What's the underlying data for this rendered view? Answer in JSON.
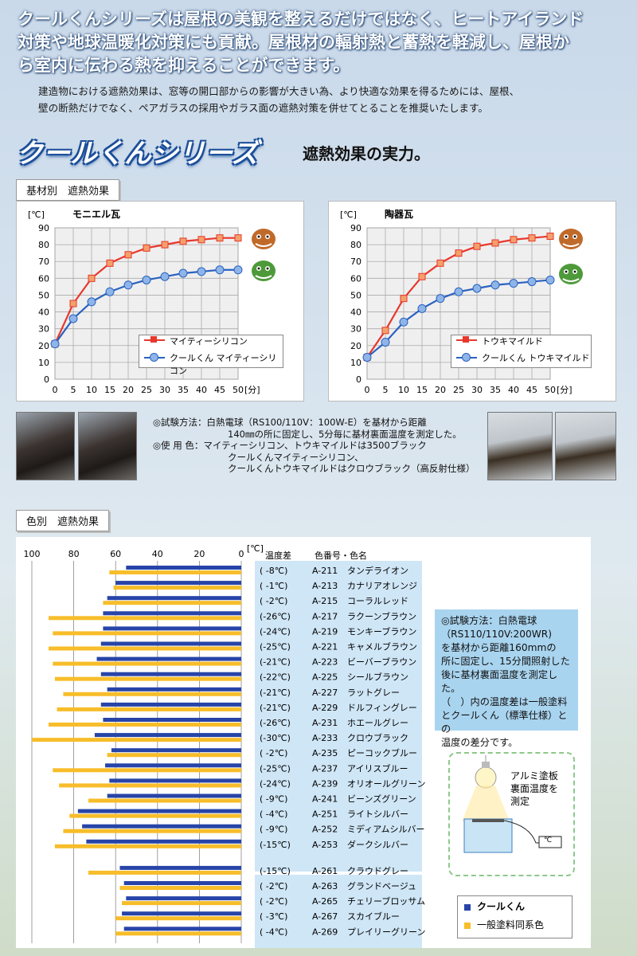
{
  "intro": {
    "line1": "クールくんシリーズは屋根の美観を整えるだけではなく、ヒートアイランド",
    "line2": "対策や地球温暖化対策にも貢献。屋根材の輻射熱と蓄熱を軽減し、屋根か",
    "line3": "ら室内に伝わる熱を抑えることができます。"
  },
  "sub": {
    "line1": "建造物における遮熱効果は、窓等の開口部からの影響が大きい為、より快適な効果を得るためには、屋根、",
    "line2": "壁の断熱だけでなく、ペアガラスの採用やガラス面の遮熱対策を併せてとることを推奨いたします。"
  },
  "headline": {
    "brand": "クールくんシリーズ",
    "tag": "遮熱効果の実力。"
  },
  "section1": {
    "title": "基材別　遮熱効果"
  },
  "section2": {
    "title": "色別　遮熱効果"
  },
  "colors": {
    "red": "#e8372c",
    "orange": "#f4a06a",
    "blue": "#2a62c0",
    "light_blue": "#8fb5e8",
    "navy_bar": "#2744a8",
    "yellow_bar": "#f7bd2a"
  },
  "chart_data": [
    {
      "type": "line",
      "title": "モニエル瓦",
      "xlabel": "[分]",
      "ylabel": "[℃]",
      "x": [
        0,
        5,
        10,
        15,
        20,
        25,
        30,
        35,
        40,
        45,
        50
      ],
      "xlim": [
        0,
        50
      ],
      "ylim": [
        0,
        90
      ],
      "x_ticks": [
        "0",
        "5",
        "10",
        "15",
        "20",
        "25",
        "30",
        "35",
        "40",
        "45",
        "50"
      ],
      "y_ticks": [
        "0",
        "10",
        "20",
        "30",
        "40",
        "50",
        "60",
        "70",
        "80",
        "90"
      ],
      "grid": true,
      "legend_position": "bottom-right",
      "series": [
        {
          "name": "マイティーシリコン",
          "values": [
            21,
            45,
            60,
            69,
            74,
            78,
            80,
            82,
            83,
            84,
            84
          ]
        },
        {
          "name": "クールくん マイティーシリコン",
          "values": [
            21,
            36,
            46,
            52,
            56,
            59,
            61,
            63,
            64,
            65,
            65
          ]
        }
      ]
    },
    {
      "type": "line",
      "title": "陶器瓦",
      "xlabel": "[分]",
      "ylabel": "[℃]",
      "x": [
        0,
        5,
        10,
        15,
        20,
        25,
        30,
        35,
        40,
        45,
        50
      ],
      "xlim": [
        0,
        50
      ],
      "ylim": [
        0,
        90
      ],
      "x_ticks": [
        "0",
        "5",
        "10",
        "15",
        "20",
        "25",
        "30",
        "35",
        "40",
        "45",
        "50"
      ],
      "y_ticks": [
        "0",
        "10",
        "20",
        "30",
        "40",
        "50",
        "60",
        "70",
        "80",
        "90"
      ],
      "grid": true,
      "legend_position": "bottom-right",
      "series": [
        {
          "name": "トウキマイルド",
          "values": [
            13,
            29,
            48,
            61,
            69,
            75,
            79,
            81,
            83,
            84,
            85
          ]
        },
        {
          "name": "クールくん トウキマイルド",
          "values": [
            13,
            22,
            34,
            42,
            48,
            52,
            54,
            56,
            57,
            58,
            59
          ]
        }
      ]
    },
    {
      "type": "bar",
      "orientation": "horizontal-reversed",
      "xlabel": "[℃]",
      "xlim": [
        0,
        100
      ],
      "x_ticks": [
        "100",
        "80",
        "60",
        "40",
        "20",
        "0"
      ],
      "legend_position": "bottom-right",
      "header": {
        "diff": "温度差",
        "code": "色番号・色名"
      },
      "series_names": [
        "クールくん",
        "一般塗料同系色"
      ],
      "rows": [
        {
          "diff": "( -8℃)",
          "code": "A-211",
          "name": "タンデライオン",
          "cool": 55,
          "std": 63
        },
        {
          "diff": "( -1℃)",
          "code": "A-213",
          "name": "カナリアオレンジ",
          "cool": 60,
          "std": 61
        },
        {
          "diff": "( -2℃)",
          "code": "A-215",
          "name": "コーラルレッド",
          "cool": 64,
          "std": 66
        },
        {
          "diff": "(-26℃)",
          "code": "A-217",
          "name": "ラクーンブラウン",
          "cool": 66,
          "std": 92
        },
        {
          "diff": "(-24℃)",
          "code": "A-219",
          "name": "モンキーブラウン",
          "cool": 66,
          "std": 90
        },
        {
          "diff": "(-25℃)",
          "code": "A-221",
          "name": "キャメルブラウン",
          "cool": 67,
          "std": 92
        },
        {
          "diff": "(-21℃)",
          "code": "A-223",
          "name": "ビーバーブラウン",
          "cool": 69,
          "std": 90
        },
        {
          "diff": "(-22℃)",
          "code": "A-225",
          "name": "シールブラウン",
          "cool": 67,
          "std": 89
        },
        {
          "diff": "(-21℃)",
          "code": "A-227",
          "name": "ラットグレー",
          "cool": 64,
          "std": 85
        },
        {
          "diff": "(-21℃)",
          "code": "A-229",
          "name": "ドルフィングレー",
          "cool": 67,
          "std": 88
        },
        {
          "diff": "(-26℃)",
          "code": "A-231",
          "name": "ホエールグレー",
          "cool": 66,
          "std": 92
        },
        {
          "diff": "(-30℃)",
          "code": "A-233",
          "name": "クロウブラック",
          "cool": 70,
          "std": 100
        },
        {
          "diff": "( -2℃)",
          "code": "A-235",
          "name": "ピーコックブルー",
          "cool": 62,
          "std": 64
        },
        {
          "diff": "(-25℃)",
          "code": "A-237",
          "name": "アイリスブルー",
          "cool": 65,
          "std": 90
        },
        {
          "diff": "(-24℃)",
          "code": "A-239",
          "name": "オリオールグリーン",
          "cool": 63,
          "std": 87
        },
        {
          "diff": "( -9℃)",
          "code": "A-241",
          "name": "ビーンズグリーン",
          "cool": 64,
          "std": 73
        },
        {
          "diff": "( -4℃)",
          "code": "A-251",
          "name": "ライトシルバー",
          "cool": 78,
          "std": 82
        },
        {
          "diff": "( -9℃)",
          "code": "A-252",
          "name": "ミディアムシルバー",
          "cool": 76,
          "std": 85
        },
        {
          "diff": "(-15℃)",
          "code": "A-253",
          "name": "ダークシルバー",
          "cool": 74,
          "std": 89
        },
        {
          "diff": "(-15℃)",
          "code": "A-261",
          "name": "クラウドグレー",
          "cool": 58,
          "std": 73
        },
        {
          "diff": "( -2℃)",
          "code": "A-263",
          "name": "グランドベージュ",
          "cool": 56,
          "std": 58
        },
        {
          "diff": "( -2℃)",
          "code": "A-265",
          "name": "チェリーブロッサム",
          "cool": 55,
          "std": 57
        },
        {
          "diff": "( -3℃)",
          "code": "A-267",
          "name": "スカイブルー",
          "cool": 57,
          "std": 60
        },
        {
          "diff": "( -4℃)",
          "code": "A-269",
          "name": "プレイリーグリーン",
          "cool": 56,
          "std": 60
        }
      ]
    }
  ],
  "legend1": {
    "a": "マイティーシリコン",
    "b": "クールくん マイティーシリコン"
  },
  "legend2": {
    "a": "トウキマイルド",
    "b": "クールくん トウキマイルド"
  },
  "test_note": {
    "l1": "◎試験方法：白熱電球（RS100/110V：100W-E）を基材から距離",
    "l2": "140㎜の所に固定し、5分毎に基材裏面温度を測定した。",
    "l3": "◎使 用 色：マイティーシリコン、トウキマイルドは3500ブラック",
    "l4": "クールくんマイティーシリコン、",
    "l5": "クールくんトウキマイルドはクロウブラック（高反射仕様）"
  },
  "info": {
    "l1": "◎試験方法：白熱電球",
    "l2": "（RS110/110V:200WR)",
    "l3": "を基材から距離160mmの",
    "l4": "所に固定し、15分間照射した",
    "l5": "後に基材裏面温度を測定した。",
    "l6": "（　）内の温度差は一般塗料",
    "l7": "とクールくん（標準仕様）との",
    "l8": "温度の差分です。"
  },
  "diagram": {
    "l1": "アルミ塗板",
    "l2": "裏面温度を",
    "l3": "測定",
    "meter": "℃"
  },
  "bar_legend": {
    "cool": "クールくん",
    "std": "一般塗料同系色"
  }
}
